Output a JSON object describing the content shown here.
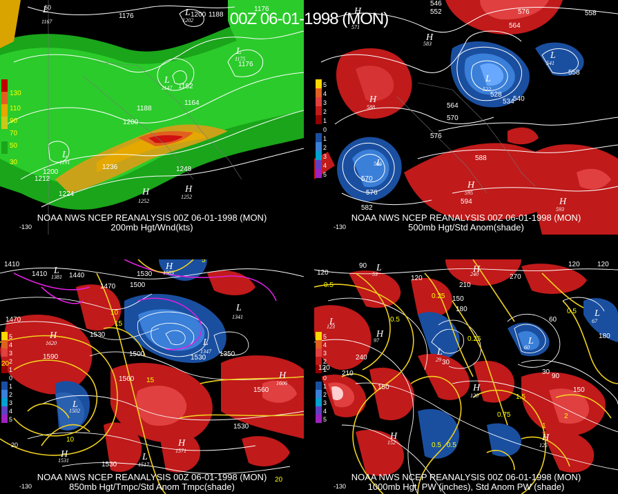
{
  "title": "00Z 06-01-1998 (MON)",
  "panels": [
    {
      "caption_line1": "NOAA NWS NCEP REANALYSIS 00Z 06-01-1998 (MON)",
      "caption_line2": "200mb Hgt/Wnd(kts)",
      "legend": [
        "130",
        "110",
        "90",
        "70",
        "50",
        "30"
      ],
      "labels": [
        "1176",
        "1188",
        "1176",
        "1200",
        "1152",
        "1164",
        "1200",
        "1188",
        "1236",
        "1248",
        "1212",
        "1200",
        "1224",
        "60",
        "1176"
      ],
      "highs_lows": [
        {
          "t": "L",
          "v": "1167"
        },
        {
          "t": "L",
          "v": "1147"
        },
        {
          "t": "L",
          "v": "1191"
        },
        {
          "t": "L",
          "v": "1175"
        },
        {
          "t": "L",
          "v": "1202"
        },
        {
          "t": "H",
          "v": "1252"
        },
        {
          "t": "H",
          "v": "1252"
        }
      ],
      "ticks": [
        "60",
        "-130"
      ]
    },
    {
      "caption_line1": "NOAA NWS NCEP REANALYSIS 00Z 06-01-1998 (MON)",
      "caption_line2": "500mb Hgt/Std Anom(shade)",
      "legend": [
        "5",
        "4",
        "3",
        "2",
        "1",
        "0",
        "1",
        "2",
        "3",
        "4",
        "5"
      ],
      "labels": [
        "546",
        "552",
        "564",
        "576",
        "558",
        "564",
        "570",
        "576",
        "528",
        "534",
        "540",
        "558",
        "588",
        "570",
        "576",
        "582",
        "594"
      ],
      "highs_lows": [
        {
          "t": "L",
          "v": "522"
        },
        {
          "t": "L",
          "v": "566"
        },
        {
          "t": "L",
          "v": "541"
        },
        {
          "t": "H",
          "v": "588"
        },
        {
          "t": "H",
          "v": "595"
        },
        {
          "t": "H",
          "v": "593"
        },
        {
          "t": "H",
          "v": "583"
        },
        {
          "t": "H",
          "v": "571"
        }
      ],
      "ticks": [
        "-130"
      ]
    },
    {
      "caption_line1": "NOAA NWS NCEP REANALYSIS 00Z 06-01-1998 (MON)",
      "caption_line2": "850mb Hgt/Tmpc/Std Anom Tmpc(shade)",
      "legend": [
        "5",
        "4",
        "3",
        "2",
        "1",
        "0",
        "1",
        "2",
        "3",
        "4",
        "5"
      ],
      "labels": [
        "1410",
        "1410",
        "1440",
        "1470",
        "1500",
        "1530",
        "1470",
        "1530",
        "1590",
        "1500",
        "1350",
        "1560",
        "1560",
        "1530",
        "15",
        "10",
        "5",
        "15",
        "20",
        "10",
        "20",
        "1530",
        "1530"
      ],
      "highs_lows": [
        {
          "t": "L",
          "v": "1381"
        },
        {
          "t": "L",
          "v": "1341"
        },
        {
          "t": "L",
          "v": "1502"
        },
        {
          "t": "L",
          "v": "1517"
        },
        {
          "t": "L",
          "v": "1347"
        },
        {
          "t": "H",
          "v": "1620"
        },
        {
          "t": "H",
          "v": "1606"
        },
        {
          "t": "H",
          "v": "1531"
        },
        {
          "t": "H",
          "v": "1571"
        },
        {
          "t": "H",
          "v": "1583"
        }
      ],
      "ticks": [
        "-130",
        "20"
      ]
    },
    {
      "caption_line1": "NOAA NWS NCEP REANALYSIS 00Z 06-01-1998 (MON)",
      "caption_line2": "1000mb Hgt, PW (inches), Std Anom PW (shade)",
      "legend": [
        "5",
        "4",
        "3",
        "2",
        "1",
        "0",
        "1",
        "2",
        "3",
        "4",
        "5"
      ],
      "labels": [
        "120",
        "90",
        "120",
        "150",
        "180",
        "210",
        "240",
        "120",
        "0.5",
        "0.25",
        "0.5",
        "0.25",
        "0.5",
        "0.75",
        "1.5",
        "2",
        "0.5",
        "30",
        "60",
        "90",
        "150",
        "180",
        "120",
        "30",
        "150",
        "270",
        "210",
        "120",
        "0.5",
        "1"
      ],
      "highs_lows": [
        {
          "t": "L",
          "v": "123"
        },
        {
          "t": "L",
          "v": "29"
        },
        {
          "t": "L",
          "v": "60"
        },
        {
          "t": "L",
          "v": "67"
        },
        {
          "t": "H",
          "v": "97"
        },
        {
          "t": "H",
          "v": "120"
        },
        {
          "t": "H",
          "v": "152"
        },
        {
          "t": "H",
          "v": "125"
        },
        {
          "t": "L",
          "v": "53"
        },
        {
          "t": "H",
          "v": "240"
        }
      ],
      "ticks": [
        "-130"
      ]
    }
  ]
}
